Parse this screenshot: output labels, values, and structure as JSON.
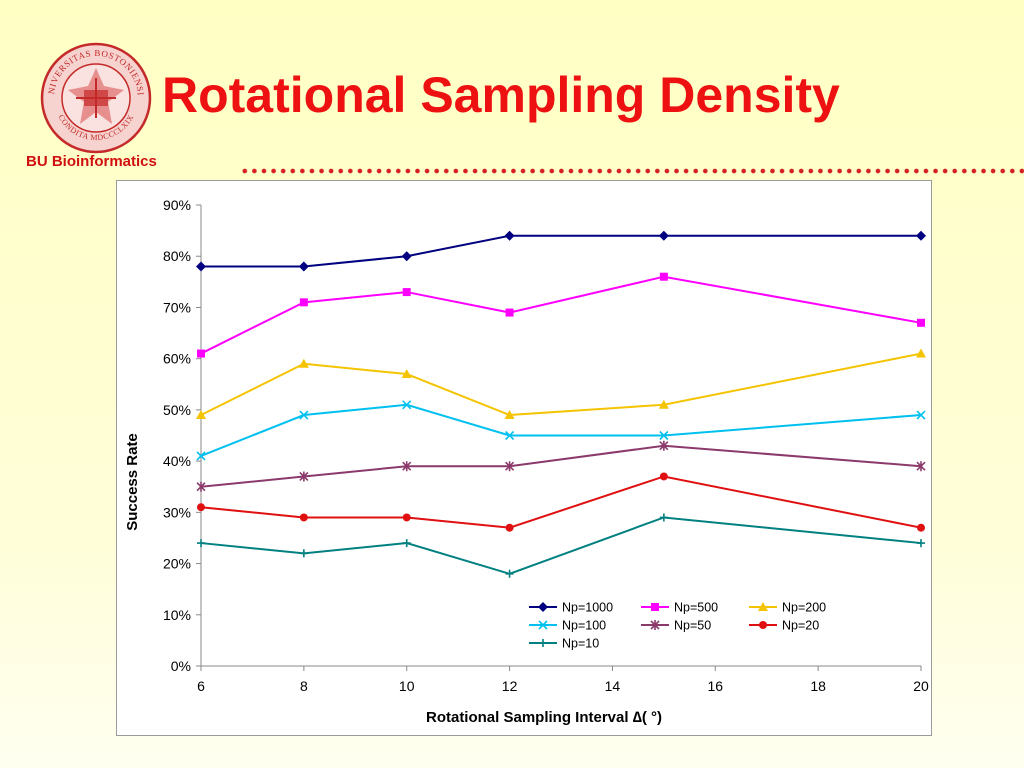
{
  "header": {
    "title": "Rotational Sampling Density",
    "org": "BU Bioinformatics",
    "seal_text": "UNIVERSITAS BOSTONIENSIS",
    "seal_motto": "CONDITA MDCCCLXIX"
  },
  "colors": {
    "title": "#ee1111",
    "accent": "#d01010"
  },
  "chart_data": {
    "type": "line",
    "xlabel": "Rotational Sampling Interval ∆( °)",
    "ylabel": "Success Rate",
    "xlim": [
      6,
      20
    ],
    "ylim": [
      0,
      0.9
    ],
    "x_ticks": [
      6,
      8,
      10,
      12,
      14,
      16,
      18,
      20
    ],
    "y_ticks": [
      0,
      0.1,
      0.2,
      0.3,
      0.4,
      0.5,
      0.6,
      0.7,
      0.8,
      0.9
    ],
    "y_tick_labels": [
      "0%",
      "10%",
      "20%",
      "30%",
      "40%",
      "50%",
      "60%",
      "70%",
      "80%",
      "90%"
    ],
    "x_tick_labels": [
      "6",
      "8",
      "10",
      "12",
      "14",
      "16",
      "18",
      "20"
    ],
    "grid": false,
    "legend_position": "lower-right",
    "x": [
      6,
      8,
      10,
      12,
      15,
      20
    ],
    "series": [
      {
        "name": "Np=1000",
        "color": "#000080",
        "marker": "diamond",
        "values": [
          0.78,
          0.78,
          0.8,
          0.84,
          0.84,
          0.84
        ]
      },
      {
        "name": "Np=500",
        "color": "#ff00ff",
        "marker": "square",
        "values": [
          0.61,
          0.71,
          0.73,
          0.69,
          0.76,
          0.67
        ]
      },
      {
        "name": "Np=200",
        "color": "#f5c400",
        "marker": "triangle",
        "values": [
          0.49,
          0.59,
          0.57,
          0.49,
          0.51,
          0.61
        ]
      },
      {
        "name": "Np=100",
        "color": "#00c0f0",
        "marker": "x",
        "values": [
          0.41,
          0.49,
          0.51,
          0.45,
          0.45,
          0.49
        ]
      },
      {
        "name": "Np=50",
        "color": "#8b3a6b",
        "marker": "star",
        "values": [
          0.35,
          0.37,
          0.39,
          0.39,
          0.43,
          0.39
        ]
      },
      {
        "name": "Np=20",
        "color": "#e01010",
        "marker": "circle",
        "values": [
          0.31,
          0.29,
          0.29,
          0.27,
          0.37,
          0.27
        ]
      },
      {
        "name": "Np=10",
        "color": "#008080",
        "marker": "plus",
        "values": [
          0.24,
          0.22,
          0.24,
          0.18,
          0.29,
          0.24
        ]
      }
    ]
  }
}
